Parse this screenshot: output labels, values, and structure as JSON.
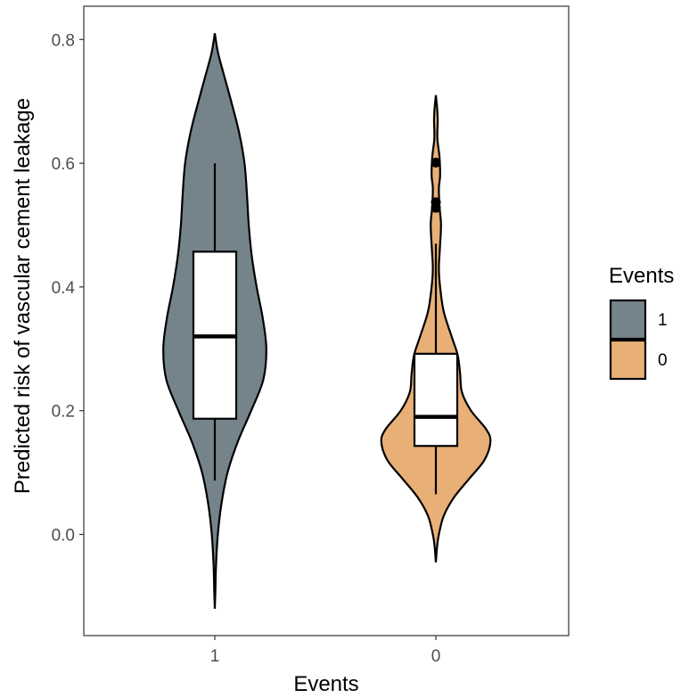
{
  "chart_data": {
    "type": "violin",
    "xlabel": "Events",
    "ylabel": "Predicted risk of vascular cement leakage",
    "ylim": [
      -0.17,
      0.855
    ],
    "yticks": [
      0.0,
      0.2,
      0.4,
      0.6,
      0.8
    ],
    "ytick_labels": [
      "0.0",
      "0.2",
      "0.4",
      "0.6",
      "0.8"
    ],
    "categories": [
      "1",
      "0"
    ],
    "grid": false,
    "legend": {
      "title": "Events",
      "placement": "right",
      "entries": [
        {
          "label": "1",
          "color": "#75848a"
        },
        {
          "label": "0",
          "color": "#e8b077"
        }
      ]
    },
    "series": [
      {
        "category": "1",
        "color": "#75848a",
        "violin_profile": [
          [
            -0.12,
            0.0
          ],
          [
            -0.09,
            0.01
          ],
          [
            -0.05,
            0.02
          ],
          [
            0.0,
            0.05
          ],
          [
            0.05,
            0.11
          ],
          [
            0.1,
            0.21
          ],
          [
            0.15,
            0.38
          ],
          [
            0.2,
            0.6
          ],
          [
            0.25,
            0.8
          ],
          [
            0.3,
            0.85
          ],
          [
            0.35,
            0.79
          ],
          [
            0.4,
            0.69
          ],
          [
            0.45,
            0.61
          ],
          [
            0.5,
            0.56
          ],
          [
            0.55,
            0.53
          ],
          [
            0.6,
            0.49
          ],
          [
            0.65,
            0.4
          ],
          [
            0.7,
            0.27
          ],
          [
            0.75,
            0.13
          ],
          [
            0.78,
            0.05
          ],
          [
            0.81,
            0.0
          ]
        ],
        "box": {
          "whisker_low": 0.087,
          "q1": 0.187,
          "median": 0.32,
          "q3": 0.457,
          "whisker_high": 0.6
        },
        "outliers": []
      },
      {
        "category": "0",
        "color": "#e8b077",
        "violin_profile": [
          [
            -0.045,
            0.0
          ],
          [
            -0.02,
            0.02
          ],
          [
            0.0,
            0.05
          ],
          [
            0.03,
            0.13
          ],
          [
            0.06,
            0.3
          ],
          [
            0.09,
            0.55
          ],
          [
            0.12,
            0.8
          ],
          [
            0.15,
            0.9
          ],
          [
            0.17,
            0.83
          ],
          [
            0.2,
            0.58
          ],
          [
            0.23,
            0.43
          ],
          [
            0.26,
            0.4
          ],
          [
            0.29,
            0.36
          ],
          [
            0.32,
            0.26
          ],
          [
            0.36,
            0.13
          ],
          [
            0.4,
            0.07
          ],
          [
            0.43,
            0.05
          ],
          [
            0.46,
            0.065
          ],
          [
            0.5,
            0.085
          ],
          [
            0.53,
            0.06
          ],
          [
            0.56,
            0.05
          ],
          [
            0.58,
            0.07
          ],
          [
            0.61,
            0.06
          ],
          [
            0.64,
            0.025
          ],
          [
            0.67,
            0.03
          ],
          [
            0.69,
            0.02
          ],
          [
            0.71,
            0.0
          ]
        ],
        "box": {
          "whisker_low": 0.065,
          "q1": 0.143,
          "median": 0.19,
          "q3": 0.292,
          "whisker_high": 0.47
        },
        "outliers": [
          0.528,
          0.537,
          0.601
        ]
      }
    ]
  }
}
